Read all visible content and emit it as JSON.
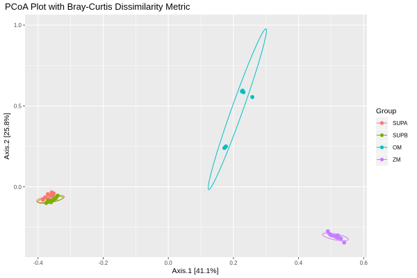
{
  "chart_data": {
    "type": "scatter",
    "title": "PCoA Plot with Bray-Curtis Dissimilarity Metric",
    "xlabel": "Axis.1   [41.1%]",
    "ylabel": "Axis.2   [25.8%]",
    "xlim": [
      -0.44,
      0.61
    ],
    "ylim": [
      -0.435,
      1.065
    ],
    "x_ticks": [
      -0.4,
      -0.2,
      0.0,
      0.2,
      0.4,
      0.6
    ],
    "x_tick_labels": [
      "-0.4",
      "-0.2",
      "0.0",
      "0.2",
      "0.4",
      "0.6"
    ],
    "y_ticks": [
      0.0,
      0.5,
      1.0
    ],
    "y_tick_labels": [
      "0.0",
      "0.5",
      "1.0"
    ],
    "grid": true,
    "legend_title": "Group",
    "legend_position": "right",
    "series": [
      {
        "name": "SUPA",
        "color": "#F8766D",
        "points": [
          [
            -0.37,
            -0.045
          ],
          [
            -0.358,
            -0.035
          ],
          [
            -0.352,
            -0.04
          ],
          [
            -0.36,
            -0.055
          ],
          [
            -0.378,
            -0.065
          ],
          [
            -0.385,
            -0.08
          ],
          [
            -0.368,
            -0.075
          ],
          [
            -0.355,
            -0.06
          ]
        ],
        "ellipse": {
          "cx": -0.362,
          "cy": -0.075,
          "rx": 0.045,
          "ry": 0.018,
          "angle_deg": 20
        }
      },
      {
        "name": "SUPB",
        "color": "#7CAE00",
        "points": [
          [
            -0.375,
            -0.1
          ],
          [
            -0.368,
            -0.093
          ],
          [
            -0.36,
            -0.085
          ],
          [
            -0.352,
            -0.08
          ],
          [
            -0.345,
            -0.07
          ],
          [
            -0.34,
            -0.055
          ],
          [
            -0.37,
            -0.085
          ],
          [
            -0.36,
            -0.095
          ]
        ],
        "ellipse": {
          "cx": -0.362,
          "cy": -0.08,
          "rx": 0.042,
          "ry": 0.016,
          "angle_deg": 22
        }
      },
      {
        "name": "OM",
        "color": "#00BFC4",
        "points": [
          [
            0.228,
            0.595
          ],
          [
            0.231,
            0.585
          ],
          [
            0.226,
            0.59
          ],
          [
            0.258,
            0.555
          ],
          [
            0.177,
            0.25
          ],
          [
            0.172,
            0.24
          ],
          [
            0.175,
            0.245
          ]
        ],
        "ellipse": {
          "cx": 0.212,
          "cy": 0.48,
          "rx": 0.505,
          "ry": 0.018,
          "angle_deg": 80
        }
      },
      {
        "name": "ZM",
        "color": "#C77CFF",
        "points": [
          [
            0.49,
            -0.275
          ],
          [
            0.495,
            -0.29
          ],
          [
            0.5,
            -0.3
          ],
          [
            0.51,
            -0.305
          ],
          [
            0.515,
            -0.31
          ],
          [
            0.52,
            -0.3
          ],
          [
            0.525,
            -0.315
          ],
          [
            0.53,
            -0.32
          ],
          [
            0.52,
            -0.315
          ],
          [
            0.54,
            -0.345
          ]
        ],
        "ellipse": {
          "cx": 0.513,
          "cy": -0.31,
          "rx": 0.043,
          "ry": 0.017,
          "angle_deg": -25
        }
      }
    ]
  }
}
